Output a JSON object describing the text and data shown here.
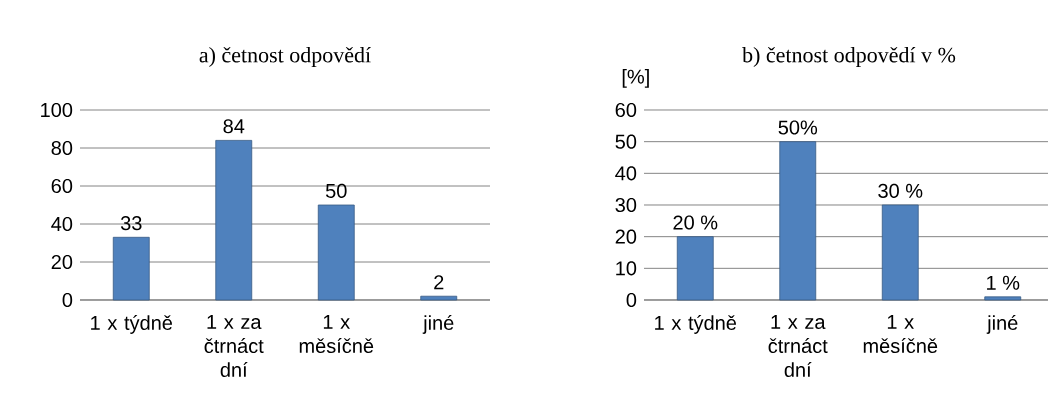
{
  "chart_data": [
    {
      "type": "bar",
      "title": "a) četnost odpovědí",
      "categories": [
        "1 x týdně",
        "1 x za čtrnáct dní",
        "1 x měsíčně",
        "jiné"
      ],
      "values": [
        33,
        84,
        50,
        2
      ],
      "color": "#4f81bd",
      "ylim": [
        0,
        100
      ],
      "yticks": [
        0,
        20,
        40,
        60,
        80,
        100
      ],
      "grid": "y",
      "data_labels": true
    },
    {
      "type": "bar",
      "title": "b) četnost odpovědí v %",
      "ylabel": "[%]",
      "categories": [
        "1 x týdně",
        "1 x za čtrnáct dní",
        "1 x měsíčně",
        "jiné"
      ],
      "values": [
        20,
        50,
        30,
        1
      ],
      "value_labels": [
        "20 %",
        "50%",
        "30 %",
        "1 %"
      ],
      "color": "#4f81bd",
      "ylim": [
        0,
        60
      ],
      "yticks": [
        0,
        10,
        20,
        30,
        40,
        50,
        60
      ],
      "grid": "y"
    }
  ]
}
